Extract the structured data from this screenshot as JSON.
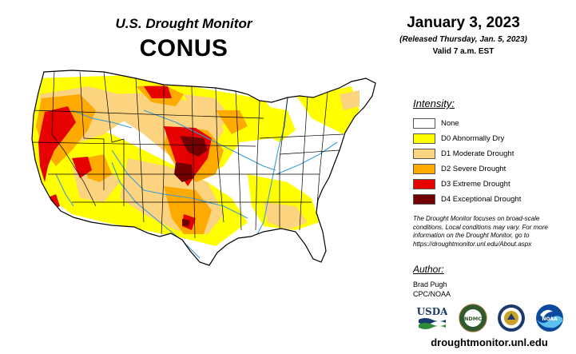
{
  "header": {
    "subtitle": "U.S. Drought Monitor",
    "title": "CONUS",
    "date": "January 3, 2023",
    "released": "(Released Thursday, Jan. 5, 2023)",
    "valid": "Valid 7 a.m. EST"
  },
  "legend": {
    "title": "Intensity:",
    "items": [
      {
        "label": "None",
        "color": "#ffffff"
      },
      {
        "label": "D0 Abnormally Dry",
        "color": "#ffff00"
      },
      {
        "label": "D1 Moderate Drought",
        "color": "#fcd37f"
      },
      {
        "label": "D2 Severe Drought",
        "color": "#ffaa00"
      },
      {
        "label": "D3 Extreme Drought",
        "color": "#e60000"
      },
      {
        "label": "D4 Exceptional Drought",
        "color": "#730000"
      }
    ]
  },
  "note": "The Drought Monitor focuses on broad-scale conditions. Local conditions may vary. For more information on the Drought Monitor, go to https://droughtmonitor.unl.edu/About.aspx",
  "author": {
    "title": "Author:",
    "name": "Brad Pugh",
    "org": "CPC/NOAA"
  },
  "logos": {
    "usda": "USDA",
    "ndmc": "NDMC",
    "noaa": "NOAA"
  },
  "website": "droughtmonitor.unl.edu",
  "colors": {
    "none": "#ffffff",
    "d0": "#ffff00",
    "d1": "#fcd37f",
    "d2": "#ffaa00",
    "d3": "#e60000",
    "d4": "#730000",
    "water": "#3d9bd6"
  }
}
